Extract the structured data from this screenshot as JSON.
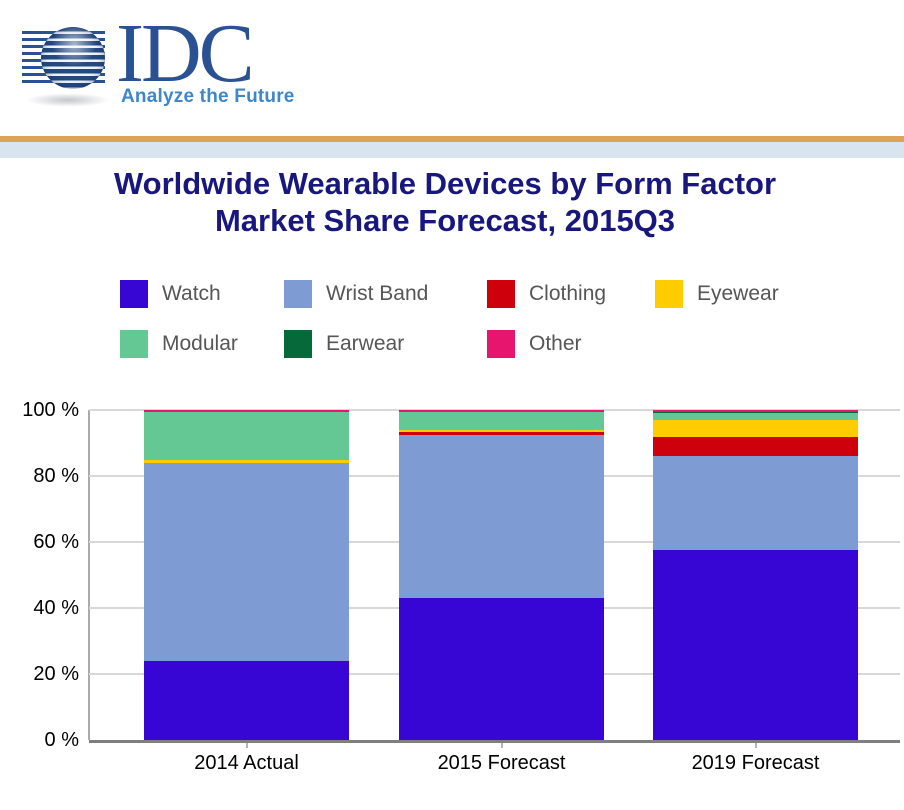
{
  "header": {
    "logo_text": "IDC",
    "tagline": "Analyze the Future"
  },
  "title": {
    "line1": "Worldwide Wearable Devices by Form Factor",
    "line2": "Market Share Forecast, 2015Q3"
  },
  "colors": {
    "accent_orange": "#E0A355",
    "band_blue": "#D9E4F1",
    "title_navy": "#17177E",
    "logo_blue": "#2A5293",
    "tagline_blue": "#3F87C9"
  },
  "chart_data": {
    "type": "bar",
    "subtype": "stacked-100-percent",
    "title": "Worldwide Wearable Devices by Form Factor Market Share Forecast, 2015Q3",
    "categories": [
      "2014 Actual",
      "2015 Forecast",
      "2019 Forecast"
    ],
    "series": [
      {
        "name": "Watch",
        "color": "#3705D4",
        "values": [
          24.0,
          43.0,
          57.5
        ]
      },
      {
        "name": "Wrist Band",
        "color": "#7F9BD3",
        "values": [
          59.9,
          49.4,
          28.5
        ]
      },
      {
        "name": "Clothing",
        "color": "#CE000C",
        "values": [
          0.1,
          0.9,
          5.7
        ]
      },
      {
        "name": "Eyewear",
        "color": "#FFCC00",
        "values": [
          0.8,
          0.8,
          5.3
        ]
      },
      {
        "name": "Modular",
        "color": "#63C894",
        "values": [
          14.5,
          5.2,
          2.2
        ]
      },
      {
        "name": "Earwear",
        "color": "#06693A",
        "values": [
          0.1,
          0.1,
          0.1
        ]
      },
      {
        "name": "Other",
        "color": "#E8156E",
        "values": [
          0.6,
          0.6,
          0.7
        ]
      }
    ],
    "y_ticks": [
      {
        "label": "100 %",
        "value": 100
      },
      {
        "label": "80 %",
        "value": 80
      },
      {
        "label": "60 %",
        "value": 60
      },
      {
        "label": "40 %",
        "value": 40
      },
      {
        "label": "20 %",
        "value": 20
      },
      {
        "label": "0 %",
        "value": 0
      }
    ],
    "ylim": [
      0,
      100
    ],
    "xlabel": "",
    "ylabel": "",
    "grid": true,
    "legend_position": "top"
  }
}
